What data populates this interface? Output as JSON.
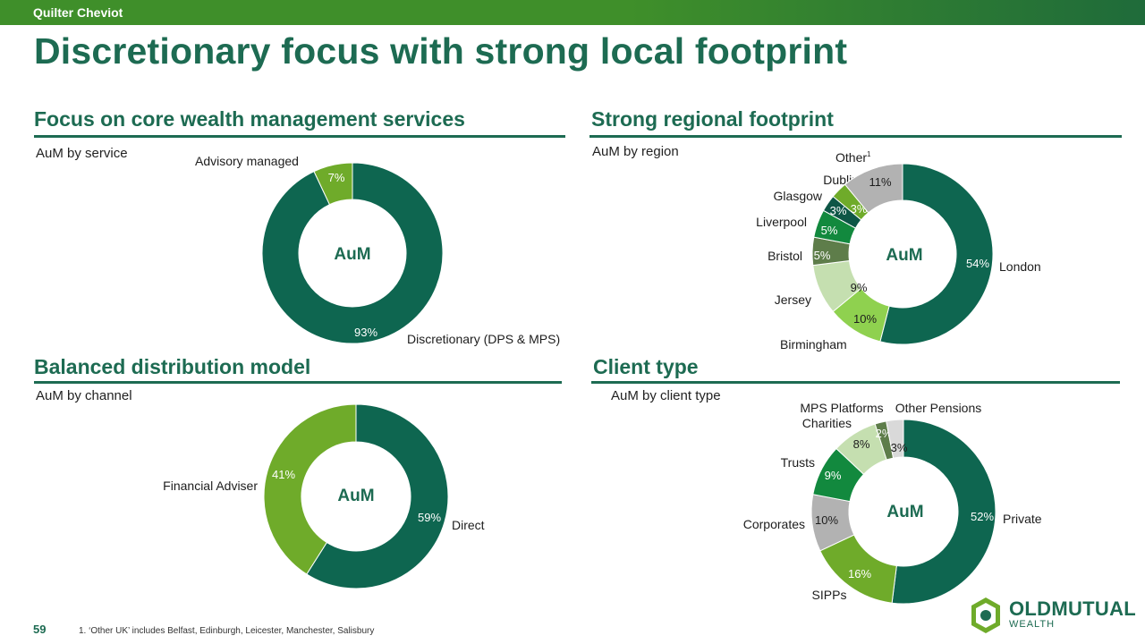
{
  "header": {
    "brand": "Quilter Cheviot",
    "title": "Discretionary focus with strong local footprint"
  },
  "sections": {
    "service": {
      "heading": "Focus on core wealth management services",
      "subtitle": "AuM by service"
    },
    "region": {
      "heading": "Strong regional footprint",
      "subtitle": "AuM by region"
    },
    "channel": {
      "heading": "Balanced distribution model",
      "subtitle": "AuM by channel"
    },
    "client": {
      "heading": "Client type",
      "subtitle": "AuM by client type"
    }
  },
  "footer": {
    "page_number": "59",
    "footnote": "1.    ‘Other UK’ includes Belfast, Edinburgh, Leicester, Manchester, Salisbury"
  },
  "logo": {
    "bold": "OLD",
    "bold2": "MUTUAL",
    "sub": "WEALTH"
  },
  "chart_data": [
    {
      "type": "pie",
      "id": "service",
      "center_label": "AuM",
      "slices": [
        {
          "label": "Discretionary (DPS & MPS)",
          "value": 93,
          "value_label": "93%",
          "color": "#0e6650"
        },
        {
          "label": "Advisory managed",
          "value": 7,
          "value_label": "7%",
          "color": "#6fab2a"
        }
      ]
    },
    {
      "type": "pie",
      "id": "region",
      "center_label": "AuM",
      "slices": [
        {
          "label": "London",
          "value": 54,
          "value_label": "54%",
          "color": "#0e6650"
        },
        {
          "label": "Birmingham",
          "value": 10,
          "value_label": "10%",
          "color": "#8fd14f"
        },
        {
          "label": "Jersey",
          "value": 9,
          "value_label": "9%",
          "color": "#c5dfb0"
        },
        {
          "label": "Bristol",
          "value": 5,
          "value_label": "5%",
          "color": "#5e7d4a"
        },
        {
          "label": "Liverpool",
          "value": 5,
          "value_label": "5%",
          "color": "#12893e"
        },
        {
          "label": "Glasgow",
          "value": 3,
          "value_label": "3%",
          "color": "#0d5646"
        },
        {
          "label": "Dublin",
          "value": 3,
          "value_label": "3%",
          "color": "#6fab2a"
        },
        {
          "label": "Other",
          "label_sup": "1",
          "value": 11,
          "value_label": "11%",
          "color": "#b2b2b2"
        }
      ]
    },
    {
      "type": "pie",
      "id": "channel",
      "center_label": "AuM",
      "slices": [
        {
          "label": "Direct",
          "value": 59,
          "value_label": "59%",
          "color": "#0e6650"
        },
        {
          "label": "Financial Adviser",
          "value": 41,
          "value_label": "41%",
          "color": "#6fab2a"
        }
      ]
    },
    {
      "type": "pie",
      "id": "client",
      "center_label": "AuM",
      "slices": [
        {
          "label": "Private",
          "value": 52,
          "value_label": "52%",
          "color": "#0e6650"
        },
        {
          "label": "SIPPs",
          "value": 16,
          "value_label": "16%",
          "color": "#6fab2a"
        },
        {
          "label": "Corporates",
          "value": 10,
          "value_label": "10%",
          "color": "#b2b2b2"
        },
        {
          "label": "Trusts",
          "value": 9,
          "value_label": "9%",
          "color": "#12893e"
        },
        {
          "label": "Charities",
          "value": 8,
          "value_label": "8%",
          "color": "#c5dfb0"
        },
        {
          "label": "MPS Platforms",
          "value": 2,
          "value_label": "2%",
          "color": "#5e7d4a"
        },
        {
          "label": "Other Pensions",
          "value": 3,
          "value_label": "3%",
          "color": "#d9d9d9"
        }
      ]
    }
  ]
}
